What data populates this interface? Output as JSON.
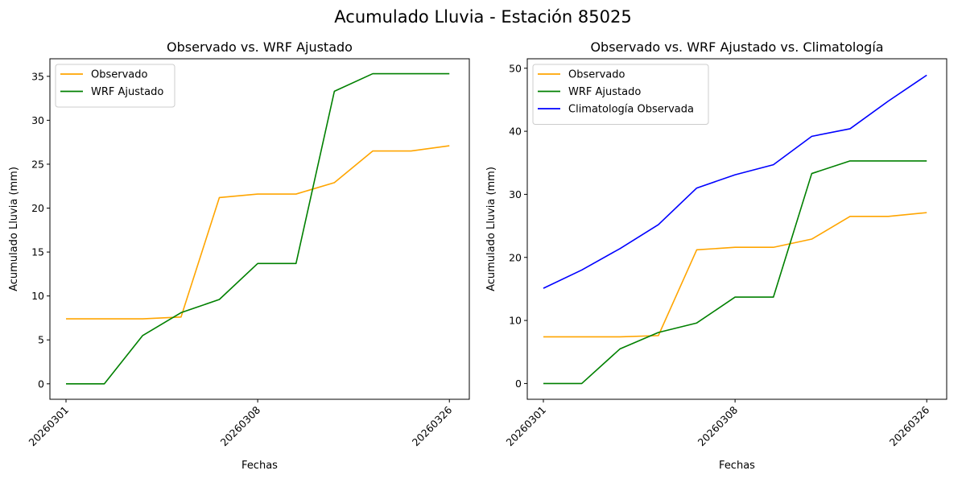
{
  "figure": {
    "suptitle": "Acumulado Lluvia - Estación 85025"
  },
  "chart_data": [
    {
      "type": "line",
      "title": "Observado vs. WRF Ajustado",
      "xlabel": "Fechas",
      "ylabel": "Acumulado Lluvia (mm)",
      "x": [
        0,
        1,
        2,
        3,
        4,
        5,
        6,
        7,
        8,
        9,
        10
      ],
      "x_tick_positions": [
        0,
        5,
        10
      ],
      "x_tick_labels": [
        "20260301",
        "20260308",
        "20260326"
      ],
      "ylim": [
        -1.76,
        37.0
      ],
      "y_ticks": [
        0,
        5,
        10,
        15,
        20,
        25,
        30,
        35
      ],
      "legend": "top-left",
      "grid": false,
      "series": [
        {
          "name": "Observado",
          "color": "#FFA500",
          "values": [
            7.4,
            7.4,
            7.4,
            7.6,
            21.2,
            21.6,
            21.6,
            22.9,
            26.5,
            26.5,
            27.1
          ]
        },
        {
          "name": "WRF Ajustado",
          "color": "#008000",
          "values": [
            0,
            0,
            5.5,
            8.1,
            9.6,
            13.7,
            13.7,
            33.3,
            35.3,
            35.3,
            35.3
          ]
        }
      ]
    },
    {
      "type": "line",
      "title": "Observado vs. WRF Ajustado vs. Climatología",
      "xlabel": "Fechas",
      "ylabel": "Acumulado Lluvia (mm)",
      "x": [
        0,
        1,
        2,
        3,
        4,
        5,
        6,
        7,
        8,
        9,
        10
      ],
      "x_tick_positions": [
        0,
        5,
        10
      ],
      "x_tick_labels": [
        "20260301",
        "20260308",
        "20260326"
      ],
      "ylim": [
        -2.5,
        51.5
      ],
      "y_ticks": [
        0,
        10,
        20,
        30,
        40,
        50
      ],
      "legend": "top-left",
      "grid": false,
      "series": [
        {
          "name": "Observado",
          "color": "#FFA500",
          "values": [
            7.4,
            7.4,
            7.4,
            7.6,
            21.2,
            21.6,
            21.6,
            22.9,
            26.5,
            26.5,
            27.1
          ]
        },
        {
          "name": "WRF Ajustado",
          "color": "#008000",
          "values": [
            0,
            0,
            5.5,
            8.1,
            9.6,
            13.7,
            13.7,
            33.3,
            35.3,
            35.3,
            35.3
          ]
        },
        {
          "name": "Climatología Observada",
          "color": "#0000FF",
          "values": [
            15.1,
            18.0,
            21.4,
            25.2,
            31.0,
            33.1,
            34.7,
            39.2,
            40.4,
            44.8,
            48.9
          ]
        }
      ]
    }
  ]
}
